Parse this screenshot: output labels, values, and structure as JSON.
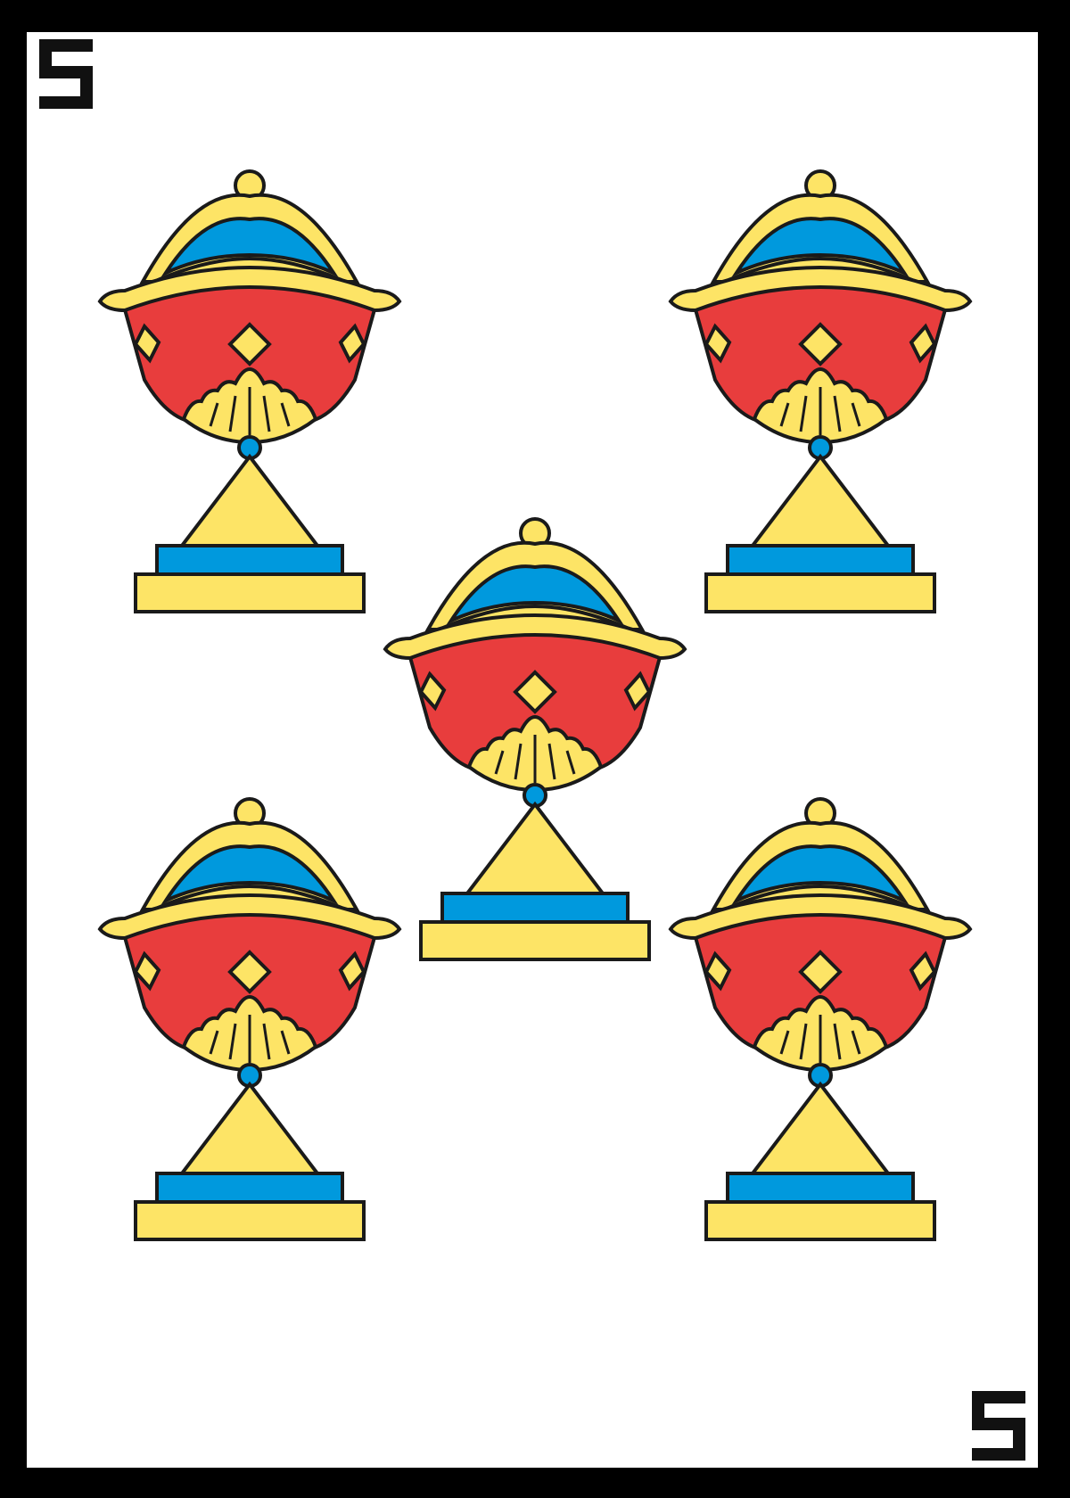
{
  "card": {
    "rank": "5",
    "suit": "cups",
    "pip_count": 5,
    "pip_icon": "goblet-cup-icon"
  },
  "colors": {
    "border": "#000000",
    "face": "#ffffff",
    "gold": "#fde466",
    "red": "#e83d3d",
    "blue": "#0099dd",
    "outline": "#1a1a1a"
  }
}
